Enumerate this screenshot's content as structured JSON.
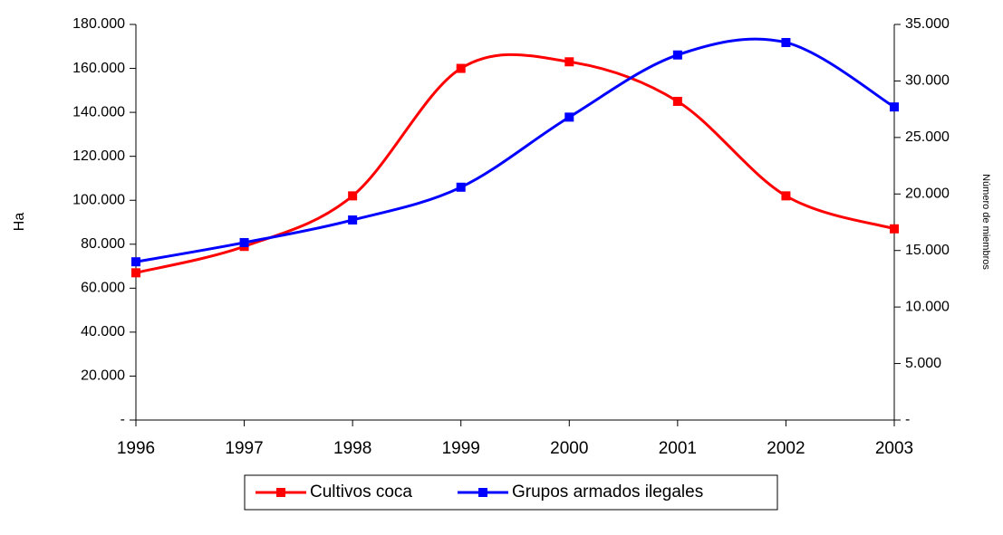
{
  "chart_data": {
    "type": "line",
    "categories": [
      "1996",
      "1997",
      "1998",
      "1999",
      "2000",
      "2001",
      "2002",
      "2003"
    ],
    "series": [
      {
        "name": "Cultivos coca",
        "color": "#ff0000",
        "values": [
          67000,
          79000,
          102000,
          160000,
          163000,
          145000,
          102000,
          87000
        ]
      },
      {
        "name": "Grupos armados ilegales",
        "color": "#0000ff",
        "axis": "y2",
        "values": [
          14000,
          15700,
          17700,
          20600,
          26800,
          32300,
          33400,
          27700
        ]
      }
    ],
    "ylabel": "Ha",
    "y2label": "Número de miembros",
    "ylim": [
      0,
      180000
    ],
    "yticks": [
      {
        "value": 0,
        "label": "-"
      },
      {
        "value": 20000,
        "label": "20.000"
      },
      {
        "value": 40000,
        "label": "40.000"
      },
      {
        "value": 60000,
        "label": "60.000"
      },
      {
        "value": 80000,
        "label": "80.000"
      },
      {
        "value": 100000,
        "label": "100.000"
      },
      {
        "value": 120000,
        "label": "120.000"
      },
      {
        "value": 140000,
        "label": "140.000"
      },
      {
        "value": 160000,
        "label": "160.000"
      },
      {
        "value": 180000,
        "label": "180.000"
      }
    ],
    "y2lim": [
      0,
      35000
    ],
    "y2ticks": [
      {
        "value": 0,
        "label": "-"
      },
      {
        "value": 5000,
        "label": "5.000"
      },
      {
        "value": 10000,
        "label": "10.000"
      },
      {
        "value": 15000,
        "label": "15.000"
      },
      {
        "value": 20000,
        "label": "20.000"
      },
      {
        "value": 25000,
        "label": "25.000"
      },
      {
        "value": 30000,
        "label": "30.000"
      },
      {
        "value": 35000,
        "label": "35.000"
      }
    ],
    "smooth": true,
    "grid": false,
    "legend": "bottom"
  }
}
